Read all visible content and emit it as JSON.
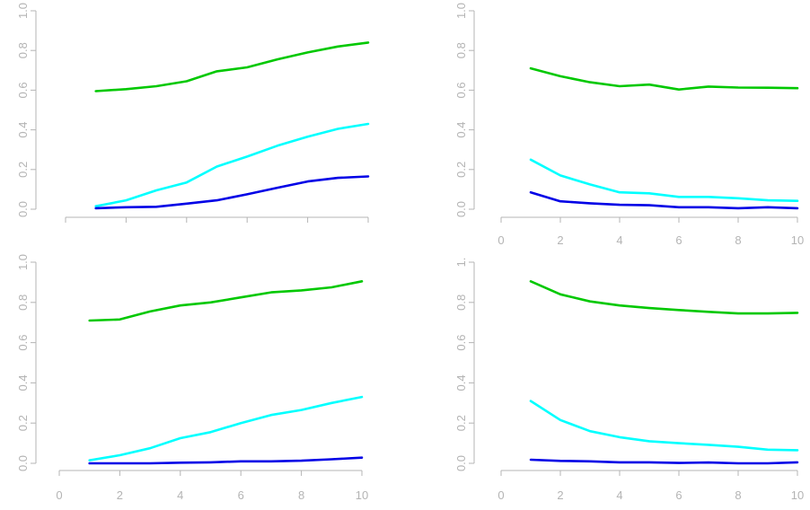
{
  "chart_data": [
    {
      "type": "line",
      "title": "",
      "xlabel": "",
      "ylabel": "",
      "ylim": [
        0,
        1
      ],
      "xlim": [
        1,
        10
      ],
      "x": [
        1,
        2,
        3,
        4,
        5,
        6,
        7,
        8,
        9,
        10
      ],
      "x_ticks": [],
      "x_tick_labels_shown": false,
      "y_ticks": [
        0,
        0.2,
        0.4,
        0.6,
        0.8,
        1
      ],
      "y_tick_labels": [
        "0.0",
        "0.2",
        "0.4",
        "0.6",
        "0.8",
        "1.0"
      ],
      "grid": false,
      "series": [
        {
          "color": "#00c800",
          "values": [
            0.595,
            0.605,
            0.62,
            0.645,
            0.695,
            0.715,
            0.755,
            0.79,
            0.82,
            0.84
          ]
        },
        {
          "color": "#00ffff",
          "values": [
            0.015,
            0.045,
            0.095,
            0.135,
            0.215,
            0.265,
            0.32,
            0.365,
            0.405,
            0.43
          ]
        },
        {
          "color": "#0000e6",
          "values": [
            0.005,
            0.01,
            0.012,
            0.028,
            0.045,
            0.075,
            0.108,
            0.14,
            0.158,
            0.165
          ]
        }
      ]
    },
    {
      "type": "line",
      "title": "",
      "xlabel": "",
      "ylabel": "",
      "ylim": [
        0,
        1
      ],
      "xlim": [
        1,
        10
      ],
      "x": [
        1,
        2,
        3,
        4,
        5,
        6,
        7,
        8,
        9,
        10
      ],
      "x_ticks": [
        0,
        2,
        4,
        6,
        8,
        10
      ],
      "x_tick_labels": [
        "0",
        "2",
        "4",
        "6",
        "8",
        "10"
      ],
      "x_tick_labels_shown": true,
      "y_ticks": [
        0,
        0.2,
        0.4,
        0.6,
        0.8,
        1
      ],
      "y_tick_labels": [
        "0.0",
        "0.2",
        "0.4",
        "0.6",
        "0.8",
        "1.0"
      ],
      "grid": false,
      "series": [
        {
          "color": "#00c800",
          "values": [
            0.71,
            0.67,
            0.64,
            0.62,
            0.628,
            0.603,
            0.618,
            0.613,
            0.612,
            0.61
          ]
        },
        {
          "color": "#00ffff",
          "values": [
            0.25,
            0.17,
            0.125,
            0.085,
            0.08,
            0.062,
            0.062,
            0.055,
            0.045,
            0.042
          ]
        },
        {
          "color": "#0000e6",
          "values": [
            0.085,
            0.04,
            0.03,
            0.022,
            0.02,
            0.01,
            0.01,
            0.005,
            0.01,
            0.005
          ]
        }
      ]
    },
    {
      "type": "line",
      "title": "",
      "xlabel": "",
      "ylabel": "",
      "ylim": [
        0,
        1
      ],
      "xlim": [
        1,
        10
      ],
      "x": [
        1,
        2,
        3,
        4,
        5,
        6,
        7,
        8,
        9,
        10
      ],
      "x_ticks": [
        0,
        2,
        4,
        6,
        8,
        10
      ],
      "x_tick_labels": [
        "0",
        "2",
        "4",
        "6",
        "8",
        "10"
      ],
      "x_tick_labels_shown": true,
      "y_ticks": [
        0,
        0.2,
        0.4,
        0.6,
        0.8,
        1
      ],
      "y_tick_labels": [
        "0.0",
        "0.2",
        "0.4",
        "0.6",
        "0.8",
        "1.0"
      ],
      "grid": false,
      "series": [
        {
          "color": "#00c800",
          "values": [
            0.71,
            0.715,
            0.755,
            0.785,
            0.8,
            0.825,
            0.85,
            0.86,
            0.875,
            0.905
          ]
        },
        {
          "color": "#00ffff",
          "values": [
            0.015,
            0.04,
            0.075,
            0.125,
            0.155,
            0.2,
            0.24,
            0.265,
            0.3,
            0.33
          ]
        },
        {
          "color": "#0000e6",
          "values": [
            0.0,
            0.0,
            0.0,
            0.003,
            0.005,
            0.01,
            0.01,
            0.013,
            0.02,
            0.028
          ]
        }
      ]
    },
    {
      "type": "line",
      "title": "",
      "xlabel": "",
      "ylabel": "",
      "ylim": [
        0,
        1
      ],
      "xlim": [
        1,
        10
      ],
      "x": [
        1,
        2,
        3,
        4,
        5,
        6,
        7,
        8,
        9,
        10
      ],
      "x_ticks": [
        0,
        2,
        4,
        6,
        8,
        10
      ],
      "x_tick_labels": [
        "0",
        "2",
        "4",
        "6",
        "8",
        "10"
      ],
      "x_tick_labels_shown": true,
      "y_ticks": [
        0,
        0.2,
        0.4,
        0.6,
        0.8,
        1
      ],
      "y_tick_labels": [
        "0.0",
        "0.2",
        "0.4",
        "0.6",
        "0.8",
        "1."
      ],
      "grid": false,
      "series": [
        {
          "color": "#00c800",
          "values": [
            0.905,
            0.84,
            0.805,
            0.785,
            0.772,
            0.762,
            0.753,
            0.745,
            0.745,
            0.748
          ]
        },
        {
          "color": "#00ffff",
          "values": [
            0.31,
            0.215,
            0.16,
            0.13,
            0.11,
            0.1,
            0.092,
            0.082,
            0.068,
            0.065
          ]
        },
        {
          "color": "#0000e6",
          "values": [
            0.018,
            0.012,
            0.01,
            0.005,
            0.005,
            0.002,
            0.004,
            0.0,
            0.0,
            0.005
          ]
        }
      ]
    }
  ]
}
